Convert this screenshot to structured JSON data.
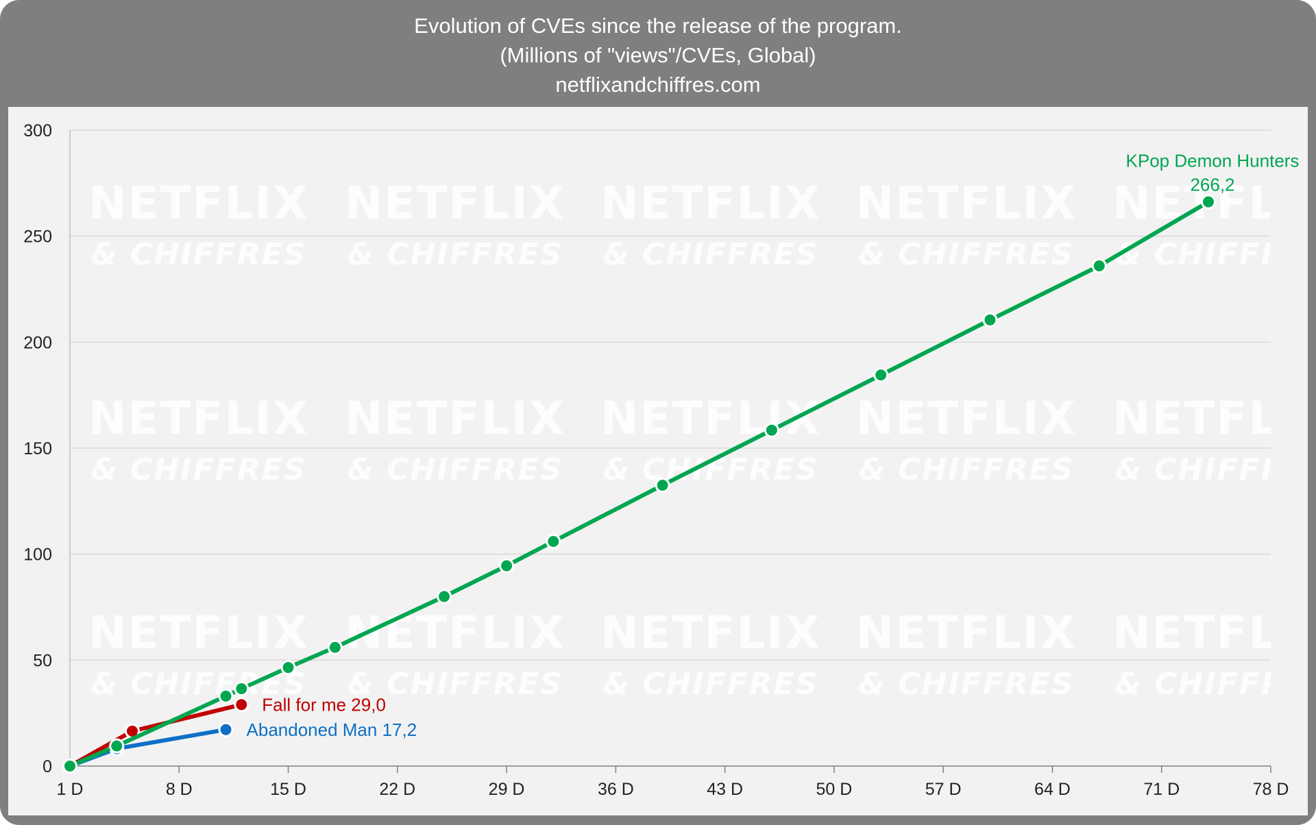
{
  "header": {
    "line1": "Evolution of CVEs since the release of the program.",
    "line2": "(Millions of \"views\"/CVEs, Global)",
    "line3": "netflixandchiffres.com"
  },
  "watermark": {
    "line1": "NETFLIX",
    "line2": "& CHIFFRES"
  },
  "chart_data": {
    "type": "line",
    "title": "Evolution of CVEs since the release of the program.",
    "subtitle": "(Millions of \"views\"/CVEs, Global)",
    "source": "netflixandchiffres.com",
    "xlabel": "",
    "ylabel": "",
    "x_ticks": [
      "1 D",
      "8 D",
      "15 D",
      "22 D",
      "29 D",
      "36 D",
      "43 D",
      "50 D",
      "57 D",
      "64 D",
      "71 D",
      "78 D"
    ],
    "y_ticks": [
      0,
      50,
      100,
      150,
      200,
      250,
      300
    ],
    "xlim": [
      1,
      78
    ],
    "ylim": [
      0,
      300
    ],
    "grid": true,
    "series": [
      {
        "name": "Fall for me",
        "label": "Fall for me 29,0",
        "color": "#c00000",
        "x": [
          1,
          5,
          12
        ],
        "y": [
          0,
          16.5,
          29.0
        ]
      },
      {
        "name": "Abandoned Man",
        "label": "Abandoned Man 17,2",
        "color": "#0f6fc6",
        "x": [
          1,
          4,
          11
        ],
        "y": [
          0,
          8.2,
          17.2
        ]
      },
      {
        "name": "KPop Demon Hunters",
        "label": "KPop Demon Hunters",
        "value_label": "266,2",
        "color": "#00a650",
        "x": [
          1,
          4,
          11,
          12,
          15,
          18,
          25,
          29,
          32,
          39,
          46,
          53,
          60,
          67,
          74
        ],
        "y": [
          0,
          9.5,
          33,
          36.5,
          46.5,
          56,
          80,
          94.5,
          106,
          132.5,
          158.5,
          184.5,
          210.5,
          236,
          266.2
        ]
      }
    ]
  }
}
